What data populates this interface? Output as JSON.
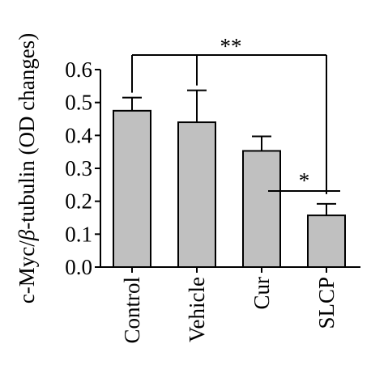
{
  "chart_data": {
    "type": "bar",
    "categories": [
      "Control",
      "Vehicle",
      "Cur",
      "SLCP"
    ],
    "values": [
      0.475,
      0.44,
      0.353,
      0.157
    ],
    "errors": [
      0.04,
      0.097,
      0.044,
      0.035
    ],
    "ylabel_parts": {
      "before": "c-Myc/",
      "beta": "β",
      "after": "-tubulin (OD changes)"
    },
    "ylim": [
      0,
      0.6
    ],
    "yticks": [
      "0.0",
      "0.1",
      "0.2",
      "0.3",
      "0.4",
      "0.5",
      "0.6"
    ],
    "ytick_values": [
      0.0,
      0.1,
      0.2,
      0.3,
      0.4,
      0.5,
      0.6
    ],
    "grid": false,
    "bar_color": "#c0c0c0",
    "edge_color": "#000000",
    "significance": [
      {
        "label": "**",
        "from": "Control",
        "to": "SLCP"
      },
      {
        "label": "*",
        "from": "Cur",
        "to": "SLCP"
      }
    ]
  }
}
